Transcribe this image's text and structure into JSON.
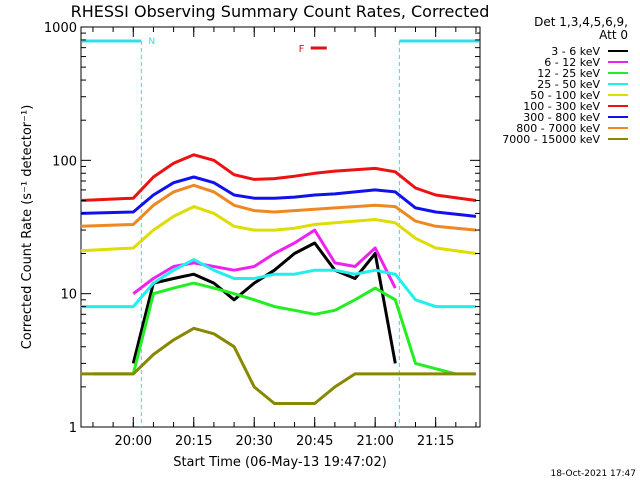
{
  "chart_data": {
    "type": "line",
    "title": "RHESSI Observing Summary Count Rates, Corrected",
    "xlabel": "Start Time (06-May-13 19:47:02)",
    "ylabel": "Corrected Count Rate (s⁻¹ detector⁻¹)",
    "yscale": "log",
    "ylim": [
      1,
      1000
    ],
    "xlim": [
      "19:47:02",
      "21:26:00"
    ],
    "x_ticks": [
      "20:00",
      "20:15",
      "20:30",
      "20:45",
      "21:00",
      "21:15"
    ],
    "y_ticks": [
      "1",
      "10",
      "100",
      "1000"
    ],
    "grid": false,
    "legend_header": [
      "Det 1,3,4,5,6,9,",
      "Att 0"
    ],
    "legend_placement": "right",
    "footer_date": "18-Oct-2021 17:47",
    "annotations": {
      "night_marker": "N",
      "flare_marker": "F",
      "night_intervals": [
        [
          "19:47",
          "20:02"
        ],
        [
          "21:06",
          "21:26"
        ]
      ],
      "flare_interval": [
        "20:44",
        "20:48"
      ]
    },
    "colors": {
      "night": "#33ddee",
      "flare": "#dd1111",
      "axis": "#000000",
      "background": "#ffffff"
    },
    "series": [
      {
        "name": "3 - 6 keV",
        "color": "#000000",
        "x": [
          "20:00",
          "20:05",
          "20:10",
          "20:15",
          "20:20",
          "20:25",
          "20:30",
          "20:35",
          "20:40",
          "20:45",
          "20:50",
          "20:55",
          "21:00",
          "21:05"
        ],
        "y": [
          3,
          12,
          13,
          14,
          12,
          9,
          12,
          15,
          20,
          24,
          15,
          13,
          20,
          3
        ]
      },
      {
        "name": "6 - 12 keV",
        "color": "#ee22ee",
        "x": [
          "20:00",
          "20:05",
          "20:10",
          "20:15",
          "20:20",
          "20:25",
          "20:30",
          "20:35",
          "20:40",
          "20:45",
          "20:50",
          "20:55",
          "21:00",
          "21:05"
        ],
        "y": [
          10,
          13,
          16,
          17,
          16,
          15,
          16,
          20,
          24,
          30,
          17,
          16,
          22,
          11
        ]
      },
      {
        "name": "12 - 25 keV",
        "color": "#22ee22",
        "x": [
          "19:50",
          "20:00",
          "20:05",
          "20:10",
          "20:15",
          "20:20",
          "20:25",
          "20:30",
          "20:35",
          "20:40",
          "20:45",
          "20:50",
          "20:55",
          "21:00",
          "21:05",
          "21:10",
          "21:20"
        ],
        "y": [
          2.5,
          2.5,
          10,
          11,
          12,
          11,
          10,
          9,
          8,
          7.5,
          7,
          7.5,
          9,
          11,
          9,
          3,
          2.5
        ]
      },
      {
        "name": "25 - 50 keV",
        "color": "#22eeee",
        "x": [
          "19:47",
          "20:00",
          "20:05",
          "20:10",
          "20:15",
          "20:20",
          "20:25",
          "20:30",
          "20:35",
          "20:40",
          "20:45",
          "20:50",
          "20:55",
          "21:00",
          "21:05",
          "21:10",
          "21:15",
          "21:25"
        ],
        "y": [
          8,
          8,
          12,
          15,
          18,
          15,
          13,
          13,
          14,
          14,
          15,
          15,
          14,
          15,
          14,
          9,
          8,
          8
        ]
      },
      {
        "name": "50 - 100 keV",
        "color": "#dddd00",
        "x": [
          "19:47",
          "20:00",
          "20:05",
          "20:10",
          "20:15",
          "20:20",
          "20:25",
          "20:30",
          "20:35",
          "20:40",
          "20:45",
          "20:50",
          "20:55",
          "21:00",
          "21:05",
          "21:10",
          "21:15",
          "21:25"
        ],
        "y": [
          21,
          22,
          30,
          38,
          45,
          40,
          32,
          30,
          30,
          31,
          33,
          34,
          35,
          36,
          34,
          26,
          22,
          20
        ]
      },
      {
        "name": "100 - 300 keV",
        "color": "#ee1111",
        "x": [
          "19:47",
          "20:00",
          "20:05",
          "20:10",
          "20:15",
          "20:20",
          "20:25",
          "20:30",
          "20:35",
          "20:40",
          "20:45",
          "20:50",
          "20:55",
          "21:00",
          "21:05",
          "21:10",
          "21:15",
          "21:25"
        ],
        "y": [
          50,
          52,
          75,
          95,
          110,
          100,
          78,
          72,
          73,
          76,
          80,
          83,
          85,
          87,
          82,
          62,
          55,
          50
        ]
      },
      {
        "name": "300 - 800 keV",
        "color": "#1111ee",
        "x": [
          "19:47",
          "20:00",
          "20:05",
          "20:10",
          "20:15",
          "20:20",
          "20:25",
          "20:30",
          "20:35",
          "20:40",
          "20:45",
          "20:50",
          "20:55",
          "21:00",
          "21:05",
          "21:10",
          "21:15",
          "21:25"
        ],
        "y": [
          40,
          41,
          55,
          68,
          75,
          68,
          55,
          52,
          52,
          53,
          55,
          56,
          58,
          60,
          58,
          44,
          41,
          38
        ]
      },
      {
        "name": "800 - 7000 keV",
        "color": "#ee8822",
        "x": [
          "19:47",
          "20:00",
          "20:05",
          "20:10",
          "20:15",
          "20:20",
          "20:25",
          "20:30",
          "20:35",
          "20:40",
          "20:45",
          "20:50",
          "20:55",
          "21:00",
          "21:05",
          "21:10",
          "21:15",
          "21:25"
        ],
        "y": [
          32,
          33,
          46,
          58,
          65,
          58,
          46,
          42,
          41,
          42,
          43,
          44,
          45,
          46,
          45,
          35,
          32,
          30
        ]
      },
      {
        "name": "7000 - 15000 keV",
        "color": "#888800",
        "x": [
          "19:47",
          "20:00",
          "20:05",
          "20:10",
          "20:15",
          "20:20",
          "20:25",
          "20:30",
          "20:35",
          "20:40",
          "20:45",
          "20:50",
          "20:55",
          "21:00",
          "21:05",
          "21:10",
          "21:15",
          "21:25"
        ],
        "y": [
          2.5,
          2.5,
          3.5,
          4.5,
          5.5,
          5,
          4,
          2,
          1.5,
          1.5,
          1.5,
          2,
          2.5,
          2.5,
          2.5,
          2.5,
          2.5,
          2.5
        ]
      }
    ]
  }
}
